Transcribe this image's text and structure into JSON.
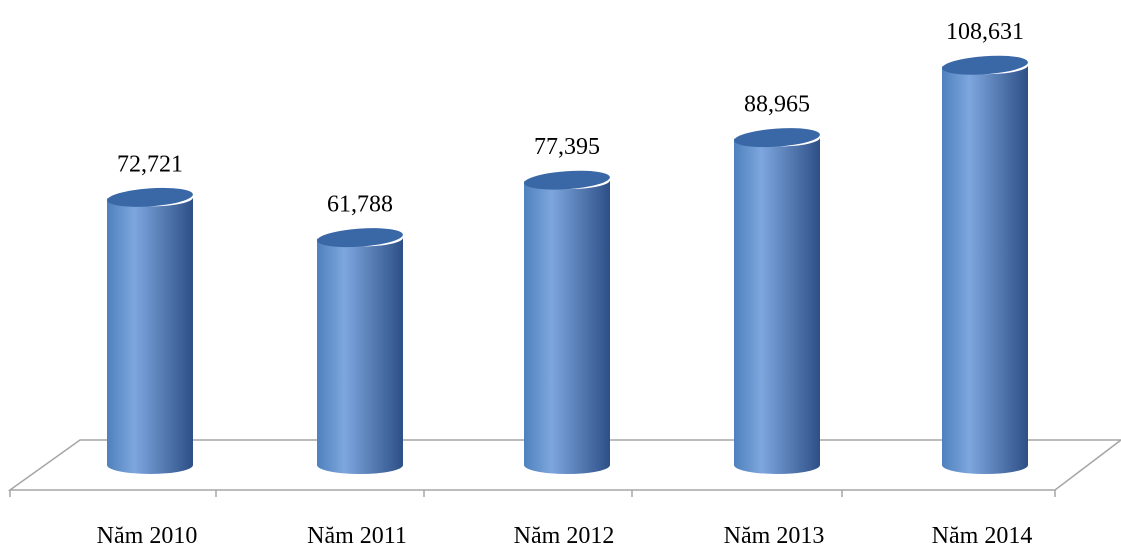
{
  "chart_data": {
    "type": "bar",
    "title": "",
    "xlabel": "",
    "ylabel": "",
    "categories": [
      "Năm 2010",
      "Năm 2011",
      "Năm 2012",
      "Năm 2013",
      "Năm 2014"
    ],
    "values": [
      72.721,
      61.788,
      77.395,
      88.965,
      108.631
    ],
    "value_labels": [
      "72,721",
      "61,788",
      "77,395",
      "88,965",
      "108,631"
    ],
    "ylim": [
      0,
      120
    ],
    "grid": false,
    "legend": "none",
    "bar_shape": "cylinder",
    "colors": {
      "bar_front": "#4f81bd",
      "bar_light": "#7ea6de",
      "bar_dark": "#2c4f86",
      "bar_top": "#3a68a7",
      "floor_line": "#a6a6a6"
    }
  }
}
